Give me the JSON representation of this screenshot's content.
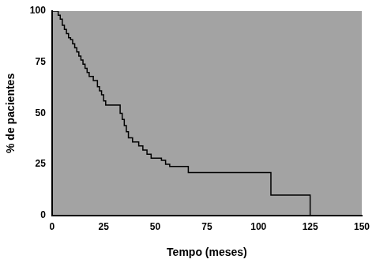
{
  "chart_data": {
    "type": "line",
    "x_label": "Tempo (meses)",
    "y_label": "% de pacientes",
    "x": [
      0,
      3,
      4,
      5,
      6,
      7,
      8,
      9,
      10,
      11,
      12,
      13,
      14,
      15,
      16,
      17,
      18,
      20,
      22,
      23,
      24,
      25,
      26,
      33,
      34,
      35,
      36,
      37,
      39,
      42,
      44,
      46,
      48,
      53,
      55,
      57,
      66,
      106,
      125
    ],
    "values": [
      100,
      98,
      96,
      93,
      91,
      89,
      87,
      86,
      84,
      82,
      80,
      78,
      76,
      74,
      72,
      70,
      68,
      66,
      63,
      61,
      59,
      56,
      54,
      50,
      47,
      44,
      41,
      38,
      36,
      34,
      32,
      30,
      28,
      27,
      25,
      24,
      21,
      10,
      0
    ],
    "color": "#000000",
    "line_style": "step",
    "xlim": [
      0,
      150
    ],
    "xticks": [
      0,
      25,
      50,
      75,
      100,
      125,
      150
    ],
    "ylim": [
      0,
      100
    ],
    "yticks": [
      0,
      25,
      50,
      75,
      100
    ],
    "grid": false
  }
}
